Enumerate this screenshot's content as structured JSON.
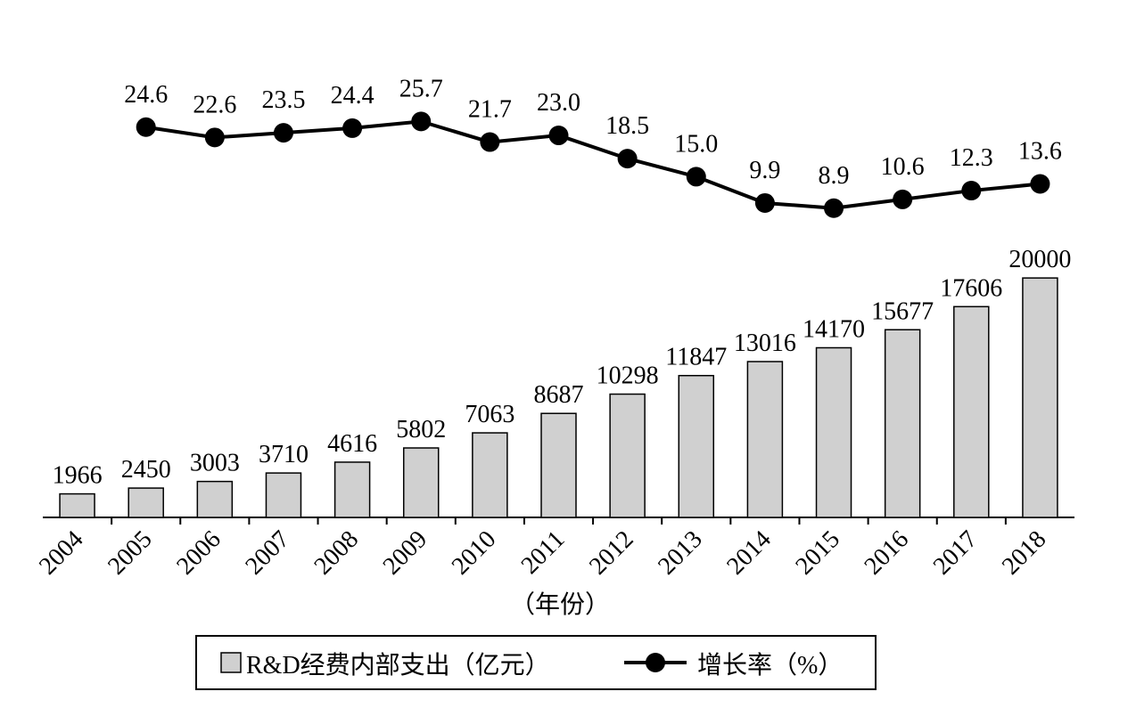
{
  "chart_data": {
    "type": "bar_line",
    "categories": [
      "2004",
      "2005",
      "2006",
      "2007",
      "2008",
      "2009",
      "2010",
      "2011",
      "2012",
      "2013",
      "2014",
      "2015",
      "2016",
      "2017",
      "2018"
    ],
    "series": [
      {
        "name": "R&D经费内部支出（亿元）",
        "type": "bar",
        "color": "#d0d0d0",
        "axis": "y",
        "values": [
          1966,
          2450,
          3003,
          3710,
          4616,
          5802,
          7063,
          8687,
          10298,
          11847,
          13016,
          14170,
          15677,
          17606,
          20000
        ]
      },
      {
        "name": "增长率（%）",
        "type": "line",
        "color": "#000000",
        "axis": "y2",
        "values": [
          null,
          24.6,
          22.6,
          23.5,
          24.4,
          25.7,
          21.7,
          23.0,
          18.5,
          15.0,
          9.9,
          8.9,
          10.6,
          12.3,
          13.6
        ],
        "value_labels": [
          null,
          "24.6",
          "22.6",
          "23.5",
          "24.4",
          "25.7",
          "21.7",
          "23.0",
          "18.5",
          "15.0",
          "9.9",
          "8.9",
          "10.6",
          "12.3",
          "13.6"
        ]
      }
    ],
    "xlabel": "（年份）",
    "ylim": [
      0,
      39500
    ],
    "y2lim": [
      -51,
      40.6
    ],
    "legend": "bottom"
  }
}
